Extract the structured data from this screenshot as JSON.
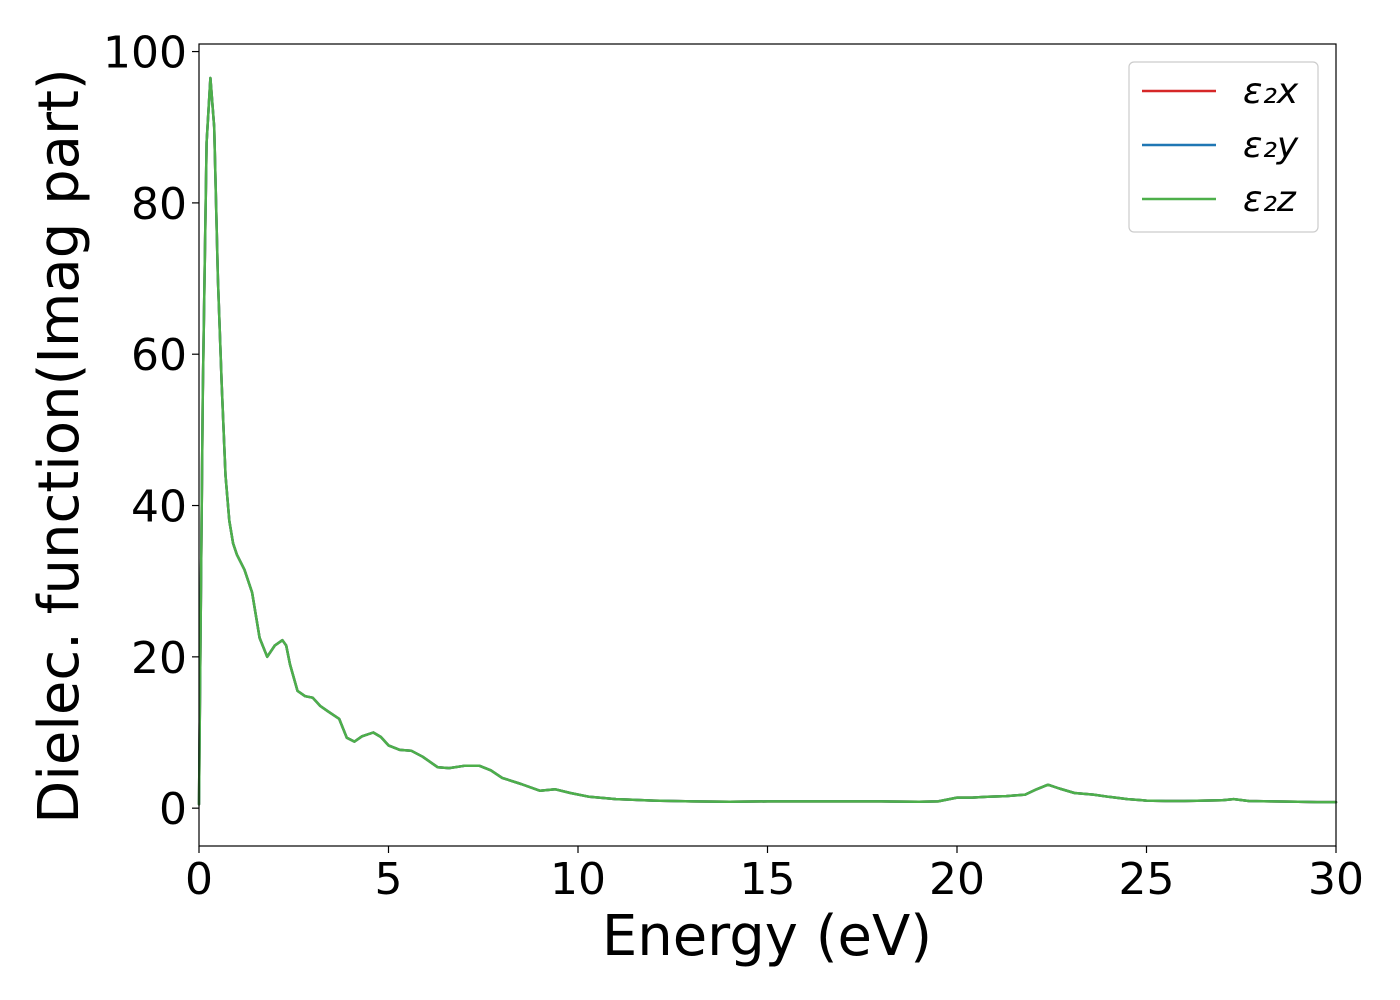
{
  "chart_data": {
    "type": "line",
    "title": "",
    "xlabel": "Energy (eV)",
    "ylabel": "Dielec. function(Imag part)",
    "xlim": [
      0,
      30
    ],
    "ylim": [
      -5,
      101
    ],
    "xticks": [
      0,
      5,
      10,
      15,
      20,
      25,
      30
    ],
    "yticks": [
      0,
      20,
      40,
      60,
      80,
      100
    ],
    "xtick_labels": [
      "0",
      "5",
      "10",
      "15",
      "20",
      "25",
      "30"
    ],
    "ytick_labels": [
      "0",
      "20",
      "40",
      "60",
      "80",
      "100"
    ],
    "grid": false,
    "legend_position": "top-right",
    "x": [
      0.0,
      0.05,
      0.1,
      0.2,
      0.3,
      0.4,
      0.5,
      0.6,
      0.7,
      0.8,
      0.9,
      1.0,
      1.2,
      1.4,
      1.6,
      1.8,
      2.0,
      2.2,
      2.3,
      2.4,
      2.6,
      2.8,
      3.0,
      3.2,
      3.4,
      3.7,
      3.9,
      4.1,
      4.3,
      4.6,
      4.8,
      5.0,
      5.3,
      5.6,
      5.9,
      6.3,
      6.6,
      7.0,
      7.4,
      7.7,
      8.0,
      8.5,
      9.0,
      9.4,
      9.8,
      10.3,
      11.0,
      12.0,
      13.0,
      14.0,
      15.0,
      16.0,
      17.0,
      18.0,
      19.0,
      19.5,
      20.0,
      20.4,
      20.8,
      21.3,
      21.8,
      22.1,
      22.4,
      22.7,
      23.1,
      23.6,
      24.0,
      24.5,
      25.0,
      25.5,
      26.0,
      26.5,
      27.0,
      27.3,
      27.7,
      28.3,
      29.0,
      29.5,
      30.0
    ],
    "series": [
      {
        "name": "ε₂x",
        "color": "#d62728"
      },
      {
        "name": "ε₂y",
        "color": "#1f77b4"
      },
      {
        "name": "ε₂z",
        "color": "#4daf4a"
      }
    ],
    "values": [
      0.5,
      28,
      55,
      88,
      96.5,
      90,
      70,
      56,
      44,
      38,
      35,
      33.5,
      31.5,
      28.5,
      22.5,
      20,
      21.5,
      22.2,
      21.5,
      19,
      15.5,
      14.8,
      14.6,
      13.5,
      12.8,
      11.8,
      9.3,
      8.8,
      9.5,
      10,
      9.4,
      8.3,
      7.7,
      7.6,
      6.8,
      5.4,
      5.3,
      5.6,
      5.6,
      5.0,
      4.0,
      3.2,
      2.3,
      2.5,
      2.0,
      1.5,
      1.2,
      1.0,
      0.9,
      0.85,
      0.9,
      0.9,
      0.9,
      0.9,
      0.85,
      0.9,
      1.4,
      1.4,
      1.5,
      1.6,
      1.8,
      2.5,
      3.1,
      2.6,
      2.0,
      1.8,
      1.5,
      1.2,
      1.0,
      0.95,
      0.95,
      1.0,
      1.05,
      1.2,
      0.95,
      0.9,
      0.85,
      0.8,
      0.8
    ]
  }
}
